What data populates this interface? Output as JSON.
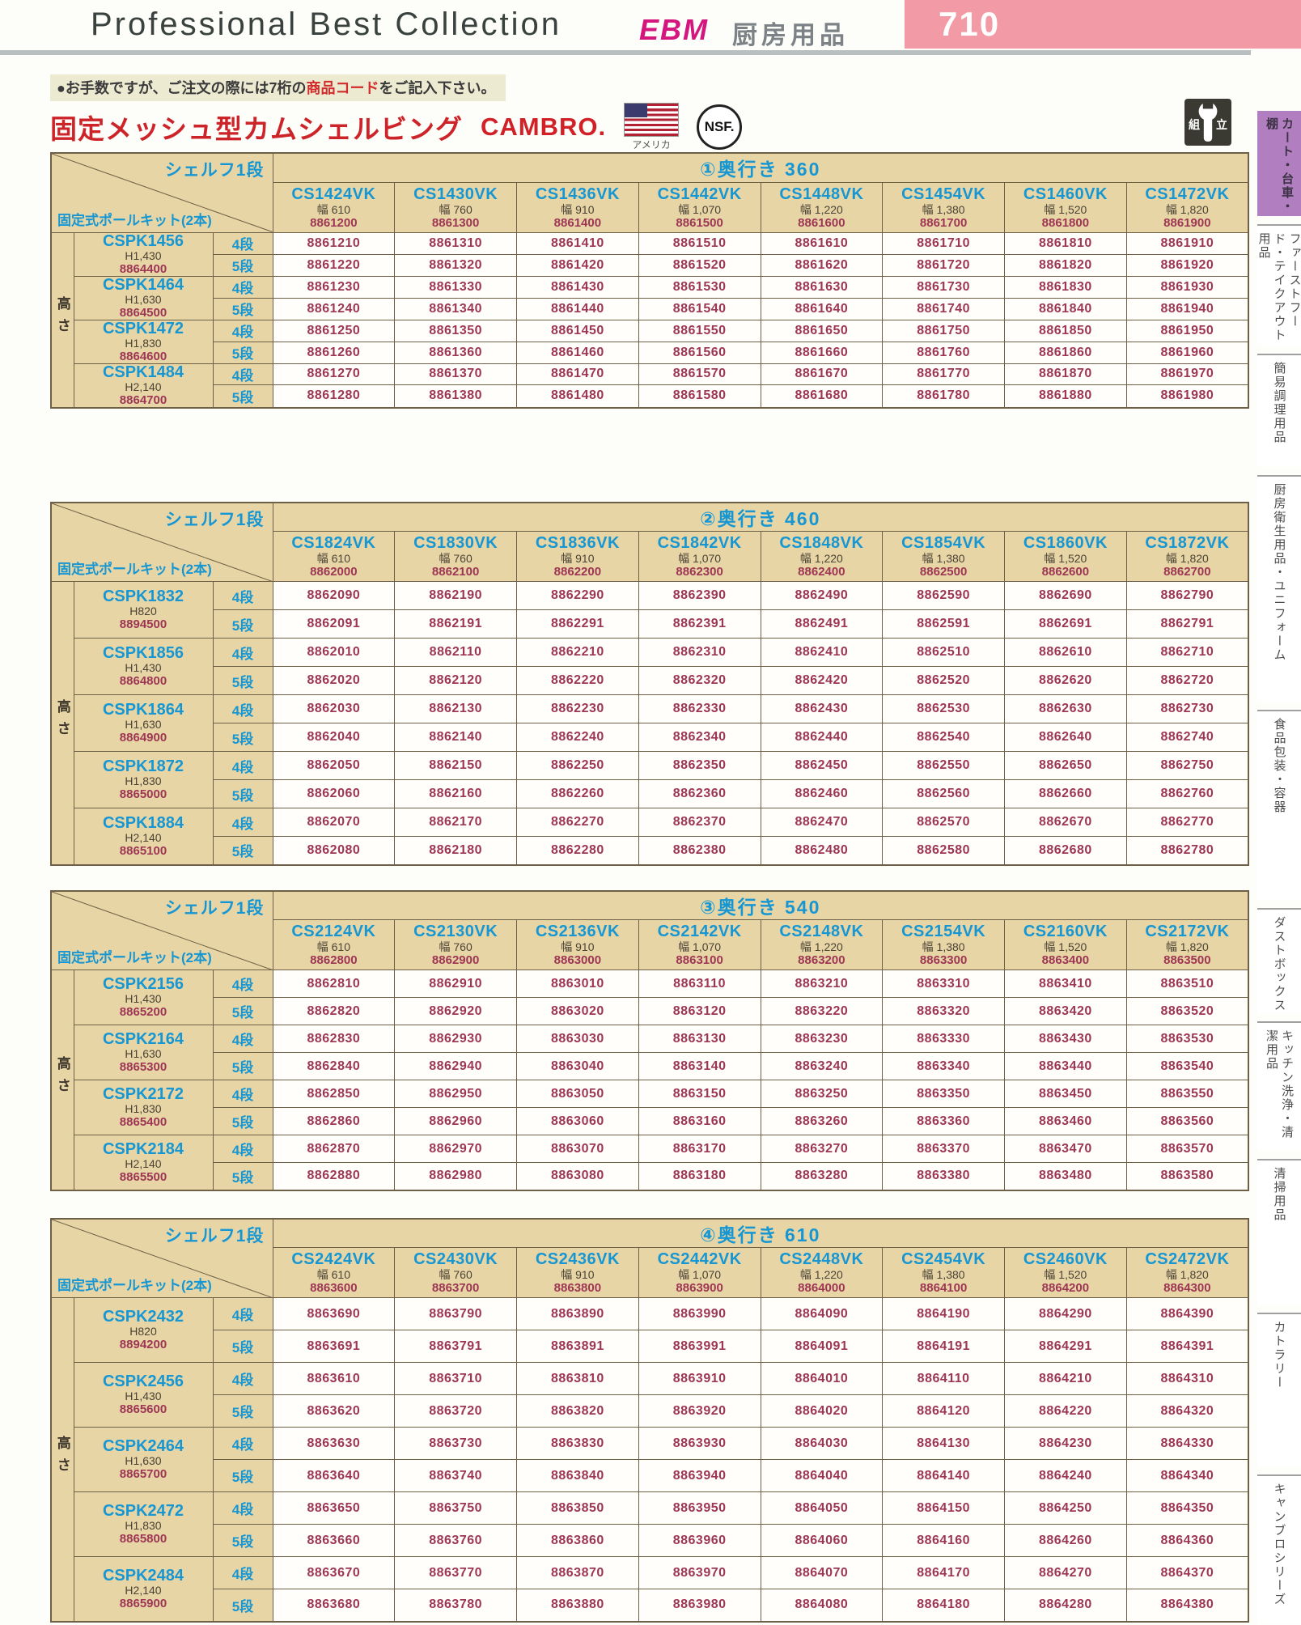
{
  "page": {
    "header_title": "Professional Best Collection",
    "brand": "EBM",
    "category": "厨房用品",
    "page_number": "710",
    "note_1": "●お手数ですが、ご注文の際には7桁の",
    "note_em": "商品コード",
    "note_2": "をご記入下さい。",
    "title": "固定メッシュ型カムシェルビング",
    "maker_logo": "CAMBRO.",
    "flag_caption": "アメリカ",
    "nsf_label": "NSF.",
    "assembly_char_1": "組",
    "assembly_char_2": "立"
  },
  "sidebar": {
    "items": [
      "カート・台車・棚",
      "ファーストフード・テイクアウト用品",
      "簡易調理用品",
      "厨房衛生用品・ユニフォーム",
      "食品包装・容器",
      "ダストボックス",
      "キッチン洗浄・清潔用品",
      "清掃用品",
      "カトラリー",
      "キャンブロシリーズ"
    ]
  },
  "table_labels": {
    "shelf": "シェルフ1段",
    "pole_kit": "固定式ポールキット(2本)",
    "height": "高さ",
    "tier4": "4段",
    "tier5": "5段"
  },
  "tables": [
    {
      "depth_title": "①奥行き 360",
      "columns": [
        {
          "code": "CS1424VK",
          "width": "幅 610",
          "item": "8861200"
        },
        {
          "code": "CS1430VK",
          "width": "幅 760",
          "item": "8861300"
        },
        {
          "code": "CS1436VK",
          "width": "幅 910",
          "item": "8861400"
        },
        {
          "code": "CS1442VK",
          "width": "幅 1,070",
          "item": "8861500"
        },
        {
          "code": "CS1448VK",
          "width": "幅 1,220",
          "item": "8861600"
        },
        {
          "code": "CS1454VK",
          "width": "幅 1,380",
          "item": "8861700"
        },
        {
          "code": "CS1460VK",
          "width": "幅 1,520",
          "item": "8861800"
        },
        {
          "code": "CS1472VK",
          "width": "幅 1,820",
          "item": "8861900"
        }
      ],
      "groups": [
        {
          "code": "CSPK1456",
          "height": "H1,430",
          "item": "8864400",
          "tier4": [
            "8861210",
            "8861310",
            "8861410",
            "8861510",
            "8861610",
            "8861710",
            "8861810",
            "8861910"
          ],
          "tier5": [
            "8861220",
            "8861320",
            "8861420",
            "8861520",
            "8861620",
            "8861720",
            "8861820",
            "8861920"
          ]
        },
        {
          "code": "CSPK1464",
          "height": "H1,630",
          "item": "8864500",
          "tier4": [
            "8861230",
            "8861330",
            "8861430",
            "8861530",
            "8861630",
            "8861730",
            "8861830",
            "8861930"
          ],
          "tier5": [
            "8861240",
            "8861340",
            "8861440",
            "8861540",
            "8861640",
            "8861740",
            "8861840",
            "8861940"
          ]
        },
        {
          "code": "CSPK1472",
          "height": "H1,830",
          "item": "8864600",
          "tier4": [
            "8861250",
            "8861350",
            "8861450",
            "8861550",
            "8861650",
            "8861750",
            "8861850",
            "8861950"
          ],
          "tier5": [
            "8861260",
            "8861360",
            "8861460",
            "8861560",
            "8861660",
            "8861760",
            "8861860",
            "8861960"
          ]
        },
        {
          "code": "CSPK1484",
          "height": "H2,140",
          "item": "8864700",
          "tier4": [
            "8861270",
            "8861370",
            "8861470",
            "8861570",
            "8861670",
            "8861770",
            "8861870",
            "8861970"
          ],
          "tier5": [
            "8861280",
            "8861380",
            "8861480",
            "8861580",
            "8861680",
            "8861780",
            "8861880",
            "8861980"
          ]
        }
      ]
    },
    {
      "depth_title": "②奥行き 460",
      "columns": [
        {
          "code": "CS1824VK",
          "width": "幅 610",
          "item": "8862000"
        },
        {
          "code": "CS1830VK",
          "width": "幅 760",
          "item": "8862100"
        },
        {
          "code": "CS1836VK",
          "width": "幅 910",
          "item": "8862200"
        },
        {
          "code": "CS1842VK",
          "width": "幅 1,070",
          "item": "8862300"
        },
        {
          "code": "CS1848VK",
          "width": "幅 1,220",
          "item": "8862400"
        },
        {
          "code": "CS1854VK",
          "width": "幅 1,380",
          "item": "8862500"
        },
        {
          "code": "CS1860VK",
          "width": "幅 1,520",
          "item": "8862600"
        },
        {
          "code": "CS1872VK",
          "width": "幅 1,820",
          "item": "8862700"
        }
      ],
      "groups": [
        {
          "code": "CSPK1832",
          "height": "H820",
          "item": "8894500",
          "tier4": [
            "8862090",
            "8862190",
            "8862290",
            "8862390",
            "8862490",
            "8862590",
            "8862690",
            "8862790"
          ],
          "tier5": [
            "8862091",
            "8862191",
            "8862291",
            "8862391",
            "8862491",
            "8862591",
            "8862691",
            "8862791"
          ]
        },
        {
          "code": "CSPK1856",
          "height": "H1,430",
          "item": "8864800",
          "tier4": [
            "8862010",
            "8862110",
            "8862210",
            "8862310",
            "8862410",
            "8862510",
            "8862610",
            "8862710"
          ],
          "tier5": [
            "8862020",
            "8862120",
            "8862220",
            "8862320",
            "8862420",
            "8862520",
            "8862620",
            "8862720"
          ]
        },
        {
          "code": "CSPK1864",
          "height": "H1,630",
          "item": "8864900",
          "tier4": [
            "8862030",
            "8862130",
            "8862230",
            "8862330",
            "8862430",
            "8862530",
            "8862630",
            "8862730"
          ],
          "tier5": [
            "8862040",
            "8862140",
            "8862240",
            "8862340",
            "8862440",
            "8862540",
            "8862640",
            "8862740"
          ]
        },
        {
          "code": "CSPK1872",
          "height": "H1,830",
          "item": "8865000",
          "tier4": [
            "8862050",
            "8862150",
            "8862250",
            "8862350",
            "8862450",
            "8862550",
            "8862650",
            "8862750"
          ],
          "tier5": [
            "8862060",
            "8862160",
            "8862260",
            "8862360",
            "8862460",
            "8862560",
            "8862660",
            "8862760"
          ]
        },
        {
          "code": "CSPK1884",
          "height": "H2,140",
          "item": "8865100",
          "tier4": [
            "8862070",
            "8862170",
            "8862270",
            "8862370",
            "8862470",
            "8862570",
            "8862670",
            "8862770"
          ],
          "tier5": [
            "8862080",
            "8862180",
            "8862280",
            "8862380",
            "8862480",
            "8862580",
            "8862680",
            "8862780"
          ]
        }
      ]
    },
    {
      "depth_title": "③奥行き 540",
      "columns": [
        {
          "code": "CS2124VK",
          "width": "幅 610",
          "item": "8862800"
        },
        {
          "code": "CS2130VK",
          "width": "幅 760",
          "item": "8862900"
        },
        {
          "code": "CS2136VK",
          "width": "幅 910",
          "item": "8863000"
        },
        {
          "code": "CS2142VK",
          "width": "幅 1,070",
          "item": "8863100"
        },
        {
          "code": "CS2148VK",
          "width": "幅 1,220",
          "item": "8863200"
        },
        {
          "code": "CS2154VK",
          "width": "幅 1,380",
          "item": "8863300"
        },
        {
          "code": "CS2160VK",
          "width": "幅 1,520",
          "item": "8863400"
        },
        {
          "code": "CS2172VK",
          "width": "幅 1,820",
          "item": "8863500"
        }
      ],
      "groups": [
        {
          "code": "CSPK2156",
          "height": "H1,430",
          "item": "8865200",
          "tier4": [
            "8862810",
            "8862910",
            "8863010",
            "8863110",
            "8863210",
            "8863310",
            "8863410",
            "8863510"
          ],
          "tier5": [
            "8862820",
            "8862920",
            "8863020",
            "8863120",
            "8863220",
            "8863320",
            "8863420",
            "8863520"
          ]
        },
        {
          "code": "CSPK2164",
          "height": "H1,630",
          "item": "8865300",
          "tier4": [
            "8862830",
            "8862930",
            "8863030",
            "8863130",
            "8863230",
            "8863330",
            "8863430",
            "8863530"
          ],
          "tier5": [
            "8862840",
            "8862940",
            "8863040",
            "8863140",
            "8863240",
            "8863340",
            "8863440",
            "8863540"
          ]
        },
        {
          "code": "CSPK2172",
          "height": "H1,830",
          "item": "8865400",
          "tier4": [
            "8862850",
            "8862950",
            "8863050",
            "8863150",
            "8863250",
            "8863350",
            "8863450",
            "8863550"
          ],
          "tier5": [
            "8862860",
            "8862960",
            "8863060",
            "8863160",
            "8863260",
            "8863360",
            "8863460",
            "8863560"
          ]
        },
        {
          "code": "CSPK2184",
          "height": "H2,140",
          "item": "8865500",
          "tier4": [
            "8862870",
            "8862970",
            "8863070",
            "8863170",
            "8863270",
            "8863370",
            "8863470",
            "8863570"
          ],
          "tier5": [
            "8862880",
            "8862980",
            "8863080",
            "8863180",
            "8863280",
            "8863380",
            "8863480",
            "8863580"
          ]
        }
      ]
    },
    {
      "depth_title": "④奥行き 610",
      "columns": [
        {
          "code": "CS2424VK",
          "width": "幅 610",
          "item": "8863600"
        },
        {
          "code": "CS2430VK",
          "width": "幅 760",
          "item": "8863700"
        },
        {
          "code": "CS2436VK",
          "width": "幅 910",
          "item": "8863800"
        },
        {
          "code": "CS2442VK",
          "width": "幅 1,070",
          "item": "8863900"
        },
        {
          "code": "CS2448VK",
          "width": "幅 1,220",
          "item": "8864000"
        },
        {
          "code": "CS2454VK",
          "width": "幅 1,380",
          "item": "8864100"
        },
        {
          "code": "CS2460VK",
          "width": "幅 1,520",
          "item": "8864200"
        },
        {
          "code": "CS2472VK",
          "width": "幅 1,820",
          "item": "8864300"
        }
      ],
      "groups": [
        {
          "code": "CSPK2432",
          "height": "H820",
          "item": "8894200",
          "tier4": [
            "8863690",
            "8863790",
            "8863890",
            "8863990",
            "8864090",
            "8864190",
            "8864290",
            "8864390"
          ],
          "tier5": [
            "8863691",
            "8863791",
            "8863891",
            "8863991",
            "8864091",
            "8864191",
            "8864291",
            "8864391"
          ]
        },
        {
          "code": "CSPK2456",
          "height": "H1,430",
          "item": "8865600",
          "tier4": [
            "8863610",
            "8863710",
            "8863810",
            "8863910",
            "8864010",
            "8864110",
            "8864210",
            "8864310"
          ],
          "tier5": [
            "8863620",
            "8863720",
            "8863820",
            "8863920",
            "8864020",
            "8864120",
            "8864220",
            "8864320"
          ]
        },
        {
          "code": "CSPK2464",
          "height": "H1,630",
          "item": "8865700",
          "tier4": [
            "8863630",
            "8863730",
            "8863830",
            "8863930",
            "8864030",
            "8864130",
            "8864230",
            "8864330"
          ],
          "tier5": [
            "8863640",
            "8863740",
            "8863840",
            "8863940",
            "8864040",
            "8864140",
            "8864240",
            "8864340"
          ]
        },
        {
          "code": "CSPK2472",
          "height": "H1,830",
          "item": "8865800",
          "tier4": [
            "8863650",
            "8863750",
            "8863850",
            "8863950",
            "8864050",
            "8864150",
            "8864250",
            "8864350"
          ],
          "tier5": [
            "8863660",
            "8863760",
            "8863860",
            "8863960",
            "8864060",
            "8864160",
            "8864260",
            "8864360"
          ]
        },
        {
          "code": "CSPK2484",
          "height": "H2,140",
          "item": "8865900",
          "tier4": [
            "8863670",
            "8863770",
            "8863870",
            "8863970",
            "8864070",
            "8864170",
            "8864270",
            "8864370"
          ],
          "tier5": [
            "8863680",
            "8863780",
            "8863880",
            "8863980",
            "8864080",
            "8864180",
            "8864280",
            "8864380"
          ]
        }
      ]
    }
  ]
}
